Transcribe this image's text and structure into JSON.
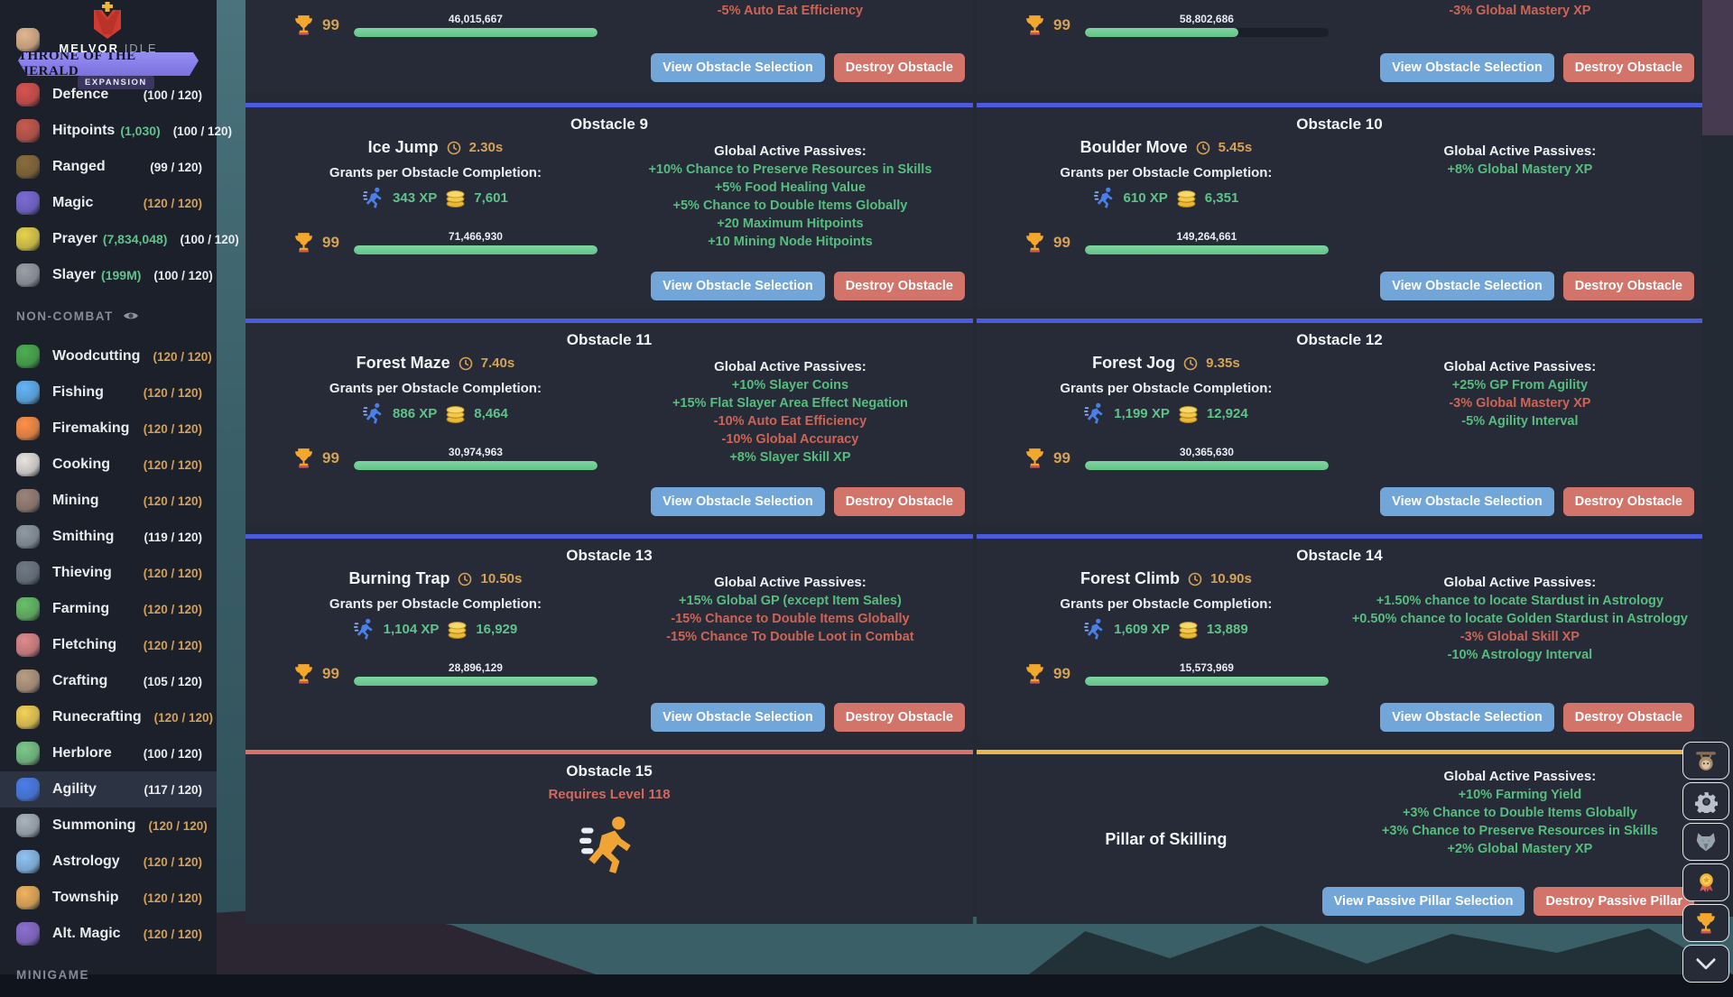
{
  "logo": {
    "brand_primary": "MELVOR",
    "brand_secondary": "IDLE",
    "banner": "THRONE OF THE HERALD",
    "badge": "EXPANSION"
  },
  "sidebar": {
    "items": [
      {
        "type": "skill",
        "icon": "strength-icon",
        "color": "#e3b78f",
        "label": "",
        "sub": "",
        "levels": "",
        "gold": false,
        "active": false
      },
      {
        "type": "skill",
        "icon": "defence-icon",
        "color": "#d9534f",
        "label": "Defence",
        "sub": "",
        "levels": "(100 / 120)",
        "gold": false,
        "active": false
      },
      {
        "type": "skill",
        "icon": "hitpoints-icon",
        "color": "#c75b4e",
        "label": "Hitpoints",
        "sub": "(1,030)",
        "levels": "(100 / 120)",
        "gold": false,
        "active": false
      },
      {
        "type": "skill",
        "icon": "ranged-icon",
        "color": "#8a6d3b",
        "label": "Ranged",
        "sub": "",
        "levels": "(99 / 120)",
        "gold": false,
        "active": false
      },
      {
        "type": "skill",
        "icon": "magic-icon",
        "color": "#7c6bd6",
        "label": "Magic",
        "sub": "",
        "levels": "(120 / 120)",
        "gold": true,
        "active": false
      },
      {
        "type": "skill",
        "icon": "prayer-icon",
        "color": "#e7d34b",
        "label": "Prayer",
        "sub": "(7,834,048)",
        "levels": "(100 / 120)",
        "gold": false,
        "active": false
      },
      {
        "type": "skill",
        "icon": "slayer-icon",
        "color": "#9aa0a6",
        "label": "Slayer",
        "sub": "(199M)",
        "levels": "(100 / 120)",
        "gold": false,
        "active": false
      },
      {
        "type": "section",
        "label": "NON-COMBAT",
        "eye": true
      },
      {
        "type": "skill",
        "icon": "woodcutting-icon",
        "color": "#4caf50",
        "label": "Woodcutting",
        "sub": "",
        "levels": "(120 / 120)",
        "gold": true,
        "active": false
      },
      {
        "type": "skill",
        "icon": "fishing-icon",
        "color": "#64b5f6",
        "label": "Fishing",
        "sub": "",
        "levels": "(120 / 120)",
        "gold": true,
        "active": false
      },
      {
        "type": "skill",
        "icon": "firemaking-icon",
        "color": "#ff9148",
        "label": "Firemaking",
        "sub": "",
        "levels": "(120 / 120)",
        "gold": true,
        "active": false
      },
      {
        "type": "skill",
        "icon": "cooking-icon",
        "color": "#e8e4df",
        "label": "Cooking",
        "sub": "",
        "levels": "(120 / 120)",
        "gold": true,
        "active": false
      },
      {
        "type": "skill",
        "icon": "mining-icon",
        "color": "#9b8578",
        "label": "Mining",
        "sub": "",
        "levels": "(120 / 120)",
        "gold": true,
        "active": false
      },
      {
        "type": "skill",
        "icon": "smithing-icon",
        "color": "#8f9aa3",
        "label": "Smithing",
        "sub": "",
        "levels": "(119 / 120)",
        "gold": false,
        "active": false
      },
      {
        "type": "skill",
        "icon": "thieving-icon",
        "color": "#707a85",
        "label": "Thieving",
        "sub": "",
        "levels": "(120 / 120)",
        "gold": true,
        "active": false
      },
      {
        "type": "skill",
        "icon": "farming-icon",
        "color": "#6abf69",
        "label": "Farming",
        "sub": "",
        "levels": "(120 / 120)",
        "gold": true,
        "active": false
      },
      {
        "type": "skill",
        "icon": "fletching-icon",
        "color": "#e08a8a",
        "label": "Fletching",
        "sub": "",
        "levels": "(120 / 120)",
        "gold": true,
        "active": false
      },
      {
        "type": "skill",
        "icon": "crafting-icon",
        "color": "#b99e84",
        "label": "Crafting",
        "sub": "",
        "levels": "(105 / 120)",
        "gold": false,
        "active": false
      },
      {
        "type": "skill",
        "icon": "runecrafting-icon",
        "color": "#f5d356",
        "label": "Runecrafting",
        "sub": "",
        "levels": "(120 / 120)",
        "gold": true,
        "active": false
      },
      {
        "type": "skill",
        "icon": "herblore-icon",
        "color": "#7cc98a",
        "label": "Herblore",
        "sub": "",
        "levels": "(100 / 120)",
        "gold": false,
        "active": false
      },
      {
        "type": "skill",
        "icon": "agility-icon",
        "color": "#4a7ee8",
        "label": "Agility",
        "sub": "",
        "levels": "(117 / 120)",
        "gold": false,
        "active": true
      },
      {
        "type": "skill",
        "icon": "summoning-icon",
        "color": "#aab4bd",
        "label": "Summoning",
        "sub": "",
        "levels": "(120 / 120)",
        "gold": true,
        "active": false
      },
      {
        "type": "skill",
        "icon": "astrology-icon",
        "color": "#8fc3f2",
        "label": "Astrology",
        "sub": "",
        "levels": "(120 / 120)",
        "gold": true,
        "active": false
      },
      {
        "type": "skill",
        "icon": "township-icon",
        "color": "#f0b35c",
        "label": "Township",
        "sub": "",
        "levels": "(120 / 120)",
        "gold": true,
        "active": false
      },
      {
        "type": "skill",
        "icon": "altmagic-icon",
        "color": "#8d6fd1",
        "label": "Alt. Magic",
        "sub": "",
        "levels": "(120 / 120)",
        "gold": true,
        "active": false
      },
      {
        "type": "section",
        "label": "MINIGAME",
        "eye": false
      }
    ]
  },
  "labels": {
    "grants": "Grants per Obstacle Completion:",
    "passives": "Global Active Passives:",
    "view_obstacle": "View Obstacle Selection",
    "destroy_obstacle": "Destroy Obstacle",
    "view_pillar": "View Passive Pillar Selection",
    "destroy_pillar": "Destroy Passive Pillar"
  },
  "partial_cards": [
    {
      "mastery_level": "99",
      "mastery_xp": "46,015,667",
      "passives": [
        {
          "text": "-5% Auto Eat Efficiency",
          "type": "debuff"
        }
      ]
    },
    {
      "mastery_level": "99",
      "mastery_xp": "58,802,686",
      "passives": [
        {
          "text": "-3% Global Mastery XP",
          "type": "debuff"
        }
      ]
    }
  ],
  "obstacles": [
    {
      "heading": "Obstacle 9",
      "name": "Ice Jump",
      "time": "2.30s",
      "xp": "343 XP",
      "gp": "7,601",
      "mastery_level": "99",
      "mastery_xp": "71,466,930",
      "passives": [
        {
          "text": "+10% Chance to Preserve Resources in Skills",
          "type": "buff"
        },
        {
          "text": "+5% Food Healing Value",
          "type": "buff"
        },
        {
          "text": "+5% Chance to Double Items Globally",
          "type": "buff"
        },
        {
          "text": "+20 Maximum Hitpoints",
          "type": "buff"
        },
        {
          "text": "+10 Mining Node Hitpoints",
          "type": "buff"
        }
      ]
    },
    {
      "heading": "Obstacle 10",
      "name": "Boulder Move",
      "time": "5.45s",
      "xp": "610 XP",
      "gp": "6,351",
      "mastery_level": "99",
      "mastery_xp": "149,264,661",
      "passives": [
        {
          "text": "+8% Global Mastery XP",
          "type": "buff"
        }
      ]
    },
    {
      "heading": "Obstacle 11",
      "name": "Forest Maze",
      "time": "7.40s",
      "xp": "886 XP",
      "gp": "8,464",
      "mastery_level": "99",
      "mastery_xp": "30,974,963",
      "passives": [
        {
          "text": "+10% Slayer Coins",
          "type": "buff"
        },
        {
          "text": "+15% Flat Slayer Area Effect Negation",
          "type": "buff"
        },
        {
          "text": "-10% Auto Eat Efficiency",
          "type": "debuff"
        },
        {
          "text": "-10% Global Accuracy",
          "type": "debuff"
        },
        {
          "text": "+8% Slayer Skill XP",
          "type": "buff"
        }
      ]
    },
    {
      "heading": "Obstacle 12",
      "name": "Forest Jog",
      "time": "9.35s",
      "xp": "1,199 XP",
      "gp": "12,924",
      "mastery_level": "99",
      "mastery_xp": "30,365,630",
      "passives": [
        {
          "text": "+25% GP From Agility",
          "type": "buff"
        },
        {
          "text": "-3% Global Mastery XP",
          "type": "debuff"
        },
        {
          "text": "-5% Agility Interval",
          "type": "buff"
        }
      ]
    },
    {
      "heading": "Obstacle 13",
      "name": "Burning Trap",
      "time": "10.50s",
      "xp": "1,104 XP",
      "gp": "16,929",
      "mastery_level": "99",
      "mastery_xp": "28,896,129",
      "passives": [
        {
          "text": "+15% Global GP (except Item Sales)",
          "type": "buff"
        },
        {
          "text": "-15% Chance to Double Items Globally",
          "type": "debuff"
        },
        {
          "text": "-15% Chance To Double Loot in Combat",
          "type": "debuff"
        }
      ]
    },
    {
      "heading": "Obstacle 14",
      "name": "Forest Climb",
      "time": "10.90s",
      "xp": "1,609 XP",
      "gp": "13,889",
      "mastery_level": "99",
      "mastery_xp": "15,573,969",
      "passives": [
        {
          "text": "+1.50% chance to locate Stardust in Astrology",
          "type": "buff"
        },
        {
          "text": "+0.50% chance to locate Golden Stardust in Astrology",
          "type": "buff"
        },
        {
          "text": "-3% Global Skill XP",
          "type": "debuff"
        },
        {
          "text": "-10% Astrology Interval",
          "type": "buff"
        }
      ]
    }
  ],
  "locked_obstacle": {
    "heading": "Obstacle 15",
    "requirement": "Requires Level 118"
  },
  "pillar": {
    "title": "Pillar of Skilling",
    "passives": [
      {
        "text": "+10% Farming Yield",
        "type": "buff"
      },
      {
        "text": "+3% Chance to Double Items Globally",
        "type": "buff"
      },
      {
        "text": "+3% Chance to Preserve Resources in Skills",
        "type": "buff"
      },
      {
        "text": "+2% Global Mastery XP",
        "type": "buff"
      }
    ]
  },
  "floating_buttons": [
    {
      "icon": "sloth-icon"
    },
    {
      "icon": "settings-gear-icon"
    },
    {
      "icon": "summoning-wolf-icon"
    },
    {
      "icon": "mastery-medal-icon"
    },
    {
      "icon": "completion-trophy-icon"
    },
    {
      "icon": "collapse-chevron-icon"
    }
  ],
  "colors": {
    "accent_blue": "#4a5cdd",
    "accent_red": "#d9706a",
    "accent_gold": "#e8b64c",
    "buff_green": "#57bd7e",
    "debuff_red": "#cd6455",
    "time_gold": "#d8a255",
    "button_blue": "#72a6d9",
    "button_red": "#d3746b",
    "bar_green": "#6fcf97",
    "card_bg": "#262b37"
  }
}
